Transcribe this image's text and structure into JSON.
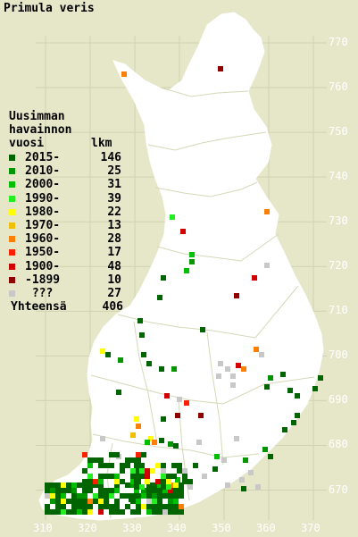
{
  "title": "Primula veris",
  "legend": {
    "heading": [
      "Uusimman",
      "havainnon"
    ],
    "col_label": "vuosi",
    "col_count": "lkm",
    "rows": [
      {
        "label": "2015-",
        "count": "146",
        "color": "#006400"
      },
      {
        "label": "2010-",
        "count": "25",
        "color": "#009600"
      },
      {
        "label": "2000-",
        "count": "31",
        "color": "#00be00"
      },
      {
        "label": "1990-",
        "count": "39",
        "color": "#22ee22"
      },
      {
        "label": "1980-",
        "count": "22",
        "color": "#ffff00"
      },
      {
        "label": "1970-",
        "count": "13",
        "color": "#f0c000"
      },
      {
        "label": "1960-",
        "count": "28",
        "color": "#ff8000"
      },
      {
        "label": "1950-",
        "count": "17",
        "color": "#ff2000"
      },
      {
        "label": "1900-",
        "count": "48",
        "color": "#d00000"
      },
      {
        "label": "-1899",
        "count": "10",
        "color": "#900000"
      },
      {
        "label": " ???",
        "count": "27",
        "color": "#c8c8c8"
      }
    ],
    "total_label": "Yhteensä",
    "total_count": "406"
  },
  "axes": {
    "y_ticks": [
      "770",
      "760",
      "750",
      "740",
      "730",
      "720",
      "710",
      "700",
      "690",
      "680",
      "670"
    ],
    "x_ticks": [
      "310",
      "320",
      "330",
      "340",
      "350",
      "360",
      "370"
    ]
  },
  "colors": {
    "background": "#e6e7c9",
    "land": "#ffffff",
    "grid": "#d0d2b0",
    "border": "#c8ca9c"
  }
}
